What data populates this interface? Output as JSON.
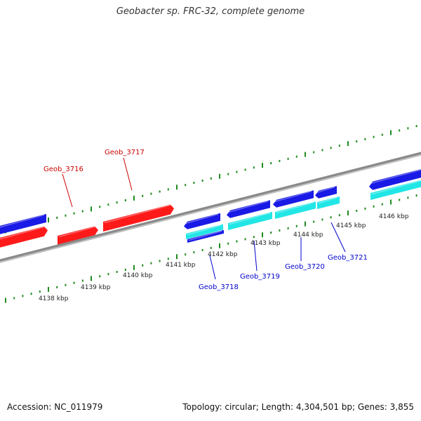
{
  "title": "Geobacter sp. FRC-32, complete genome",
  "footer": {
    "accession": "Accession: NC_011979",
    "summary": "Topology: circular; Length: 4,304,501 bp; Genes: 3,855"
  },
  "scale_labels": [
    "4138 kbp",
    "4139 kbp",
    "4140 kbp",
    "4141 kbp",
    "4142 kbp",
    "4143 kbp",
    "4144 kbp",
    "4145 kbp",
    "4146 kbp"
  ],
  "gene_labels": {
    "forward": [
      "Geob_3716",
      "Geob_3717"
    ],
    "reverse": [
      "Geob_3718",
      "Geob_3719",
      "Geob_3720",
      "Geob_3721"
    ]
  },
  "colors": {
    "backbone": "#8a8a8a",
    "tick": "#1e8a1e",
    "forward_gene": "#ff1a1a",
    "reverse_gene": "#1a1ae6",
    "cds_feature": "#22e6e6",
    "forward_label": "#cc0000",
    "reverse_label": "#0000cc"
  }
}
